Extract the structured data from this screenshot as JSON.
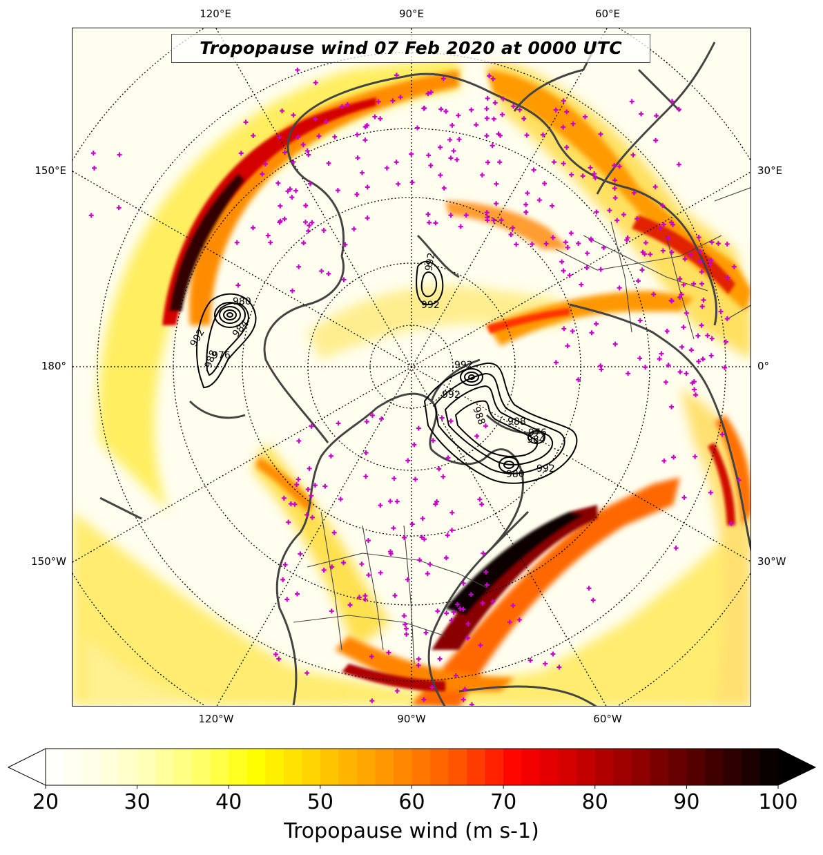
{
  "title": "Tropopause wind 07 Feb 2020 at 0000 UTC",
  "longitude_labels": {
    "top": [
      "120°E",
      "90°E",
      "60°E"
    ],
    "left": [
      "150°E",
      "180°",
      "150°W"
    ],
    "right": [
      "30°E",
      "0°",
      "30°W"
    ],
    "bottom": [
      "120°W",
      "90°W",
      "60°W"
    ]
  },
  "contour_labels": [
    "992",
    "988",
    "984",
    "980",
    "976",
    "992",
    "992",
    "988",
    "992",
    "984",
    "992",
    "988",
    "980",
    "992",
    "976"
  ],
  "colorbar": {
    "label": "Tropopause wind (m s-1)",
    "ticks": [
      "20",
      "30",
      "40",
      "50",
      "60",
      "70",
      "80",
      "90",
      "100"
    ],
    "min": 20,
    "max": 100,
    "colormap": "hot_r",
    "extend": "both",
    "colors": [
      "#ffffff",
      "#ffffe6",
      "#ffffb3",
      "#ffff66",
      "#ffff00",
      "#ffd700",
      "#ffab00",
      "#ff8000",
      "#ff4e00",
      "#ff0000",
      "#d40000",
      "#a00000",
      "#6b0000",
      "#350000",
      "#000000"
    ]
  },
  "observation_marker": {
    "symbol": "+",
    "color": "#cc00cc"
  },
  "coastline_color": "#444444",
  "contour_color": "#000000"
}
